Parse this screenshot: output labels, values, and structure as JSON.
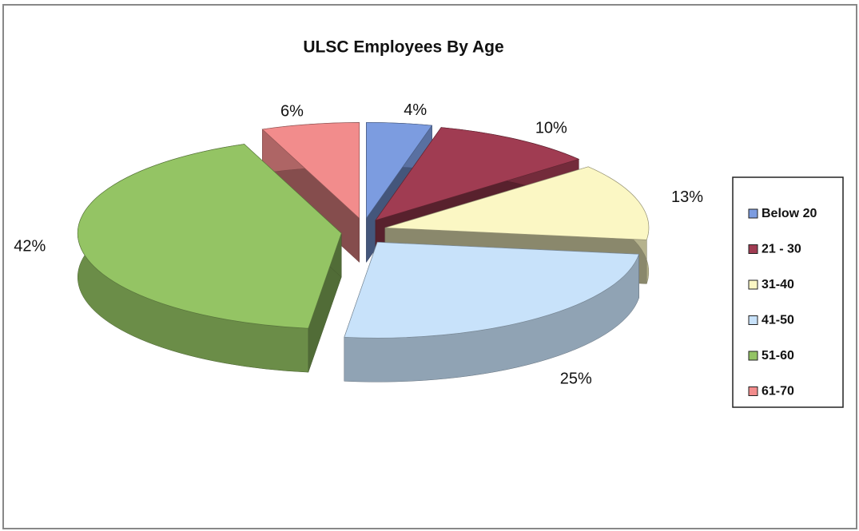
{
  "chart_data": {
    "type": "pie",
    "title": "ULSC Employees By Age",
    "categories": [
      "Below 20",
      "21 - 30",
      "31-40",
      "41-50",
      "51-60",
      "61-70"
    ],
    "values": [
      4,
      10,
      13,
      25,
      42,
      6
    ],
    "value_labels": [
      "4%",
      "10%",
      "13%",
      "25%",
      "42%",
      "6%"
    ],
    "colors": [
      "#7c9ce0",
      "#a03c52",
      "#fbf7c4",
      "#c8e2fa",
      "#94c464",
      "#f28c8c"
    ],
    "legend": "right"
  }
}
